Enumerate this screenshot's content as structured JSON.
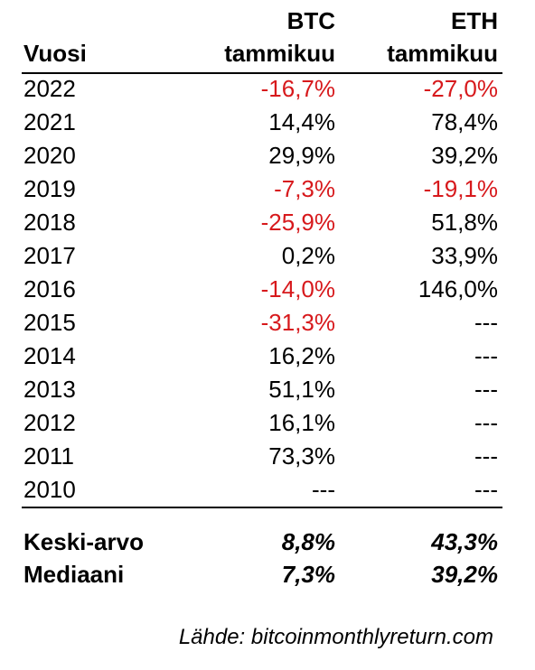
{
  "header": {
    "btc_line1": "BTC",
    "eth_line1": "ETH",
    "year_label": "Vuosi",
    "btc_line2": "tammikuu",
    "eth_line2": "tammikuu"
  },
  "colors": {
    "negative": "#d7191c",
    "text": "#000000"
  },
  "rows": [
    {
      "year": "2022",
      "btc": "-16,7%",
      "eth": "-27,0%"
    },
    {
      "year": "2021",
      "btc": "14,4%",
      "eth": "78,4%"
    },
    {
      "year": "2020",
      "btc": "29,9%",
      "eth": "39,2%"
    },
    {
      "year": "2019",
      "btc": "-7,3%",
      "eth": "-19,1%"
    },
    {
      "year": "2018",
      "btc": "-25,9%",
      "eth": "51,8%"
    },
    {
      "year": "2017",
      "btc": "0,2%",
      "eth": "33,9%"
    },
    {
      "year": "2016",
      "btc": "-14,0%",
      "eth": "146,0%"
    },
    {
      "year": "2015",
      "btc": "-31,3%",
      "eth": "---"
    },
    {
      "year": "2014",
      "btc": "16,2%",
      "eth": "---"
    },
    {
      "year": "2013",
      "btc": "51,1%",
      "eth": "---"
    },
    {
      "year": "2012",
      "btc": "16,1%",
      "eth": "---"
    },
    {
      "year": "2011",
      "btc": "73,3%",
      "eth": "---"
    },
    {
      "year": "2010",
      "btc": "---",
      "eth": "---"
    }
  ],
  "summary": {
    "mean": {
      "label": "Keski-arvo",
      "btc": "8,8%",
      "eth": "43,3%"
    },
    "median": {
      "label": "Mediaani",
      "btc": "7,3%",
      "eth": "39,2%"
    }
  },
  "source": "Lähde: bitcoinmonthlyreturn.com",
  "chart_data": {
    "type": "table",
    "columns": [
      "Vuosi",
      "BTC tammikuu",
      "ETH tammikuu"
    ],
    "rows": [
      [
        "2022",
        -16.7,
        -27.0
      ],
      [
        "2021",
        14.4,
        78.4
      ],
      [
        "2020",
        29.9,
        39.2
      ],
      [
        "2019",
        -7.3,
        -19.1
      ],
      [
        "2018",
        -25.9,
        51.8
      ],
      [
        "2017",
        0.2,
        33.9
      ],
      [
        "2016",
        -14.0,
        146.0
      ],
      [
        "2015",
        -31.3,
        null
      ],
      [
        "2014",
        16.2,
        null
      ],
      [
        "2013",
        51.1,
        null
      ],
      [
        "2012",
        16.1,
        null
      ],
      [
        "2011",
        73.3,
        null
      ],
      [
        "2010",
        null,
        null
      ]
    ],
    "summary_rows": [
      [
        "Keski-arvo",
        8.8,
        43.3
      ],
      [
        "Mediaani",
        7.3,
        39.2
      ]
    ],
    "unit": "%"
  }
}
